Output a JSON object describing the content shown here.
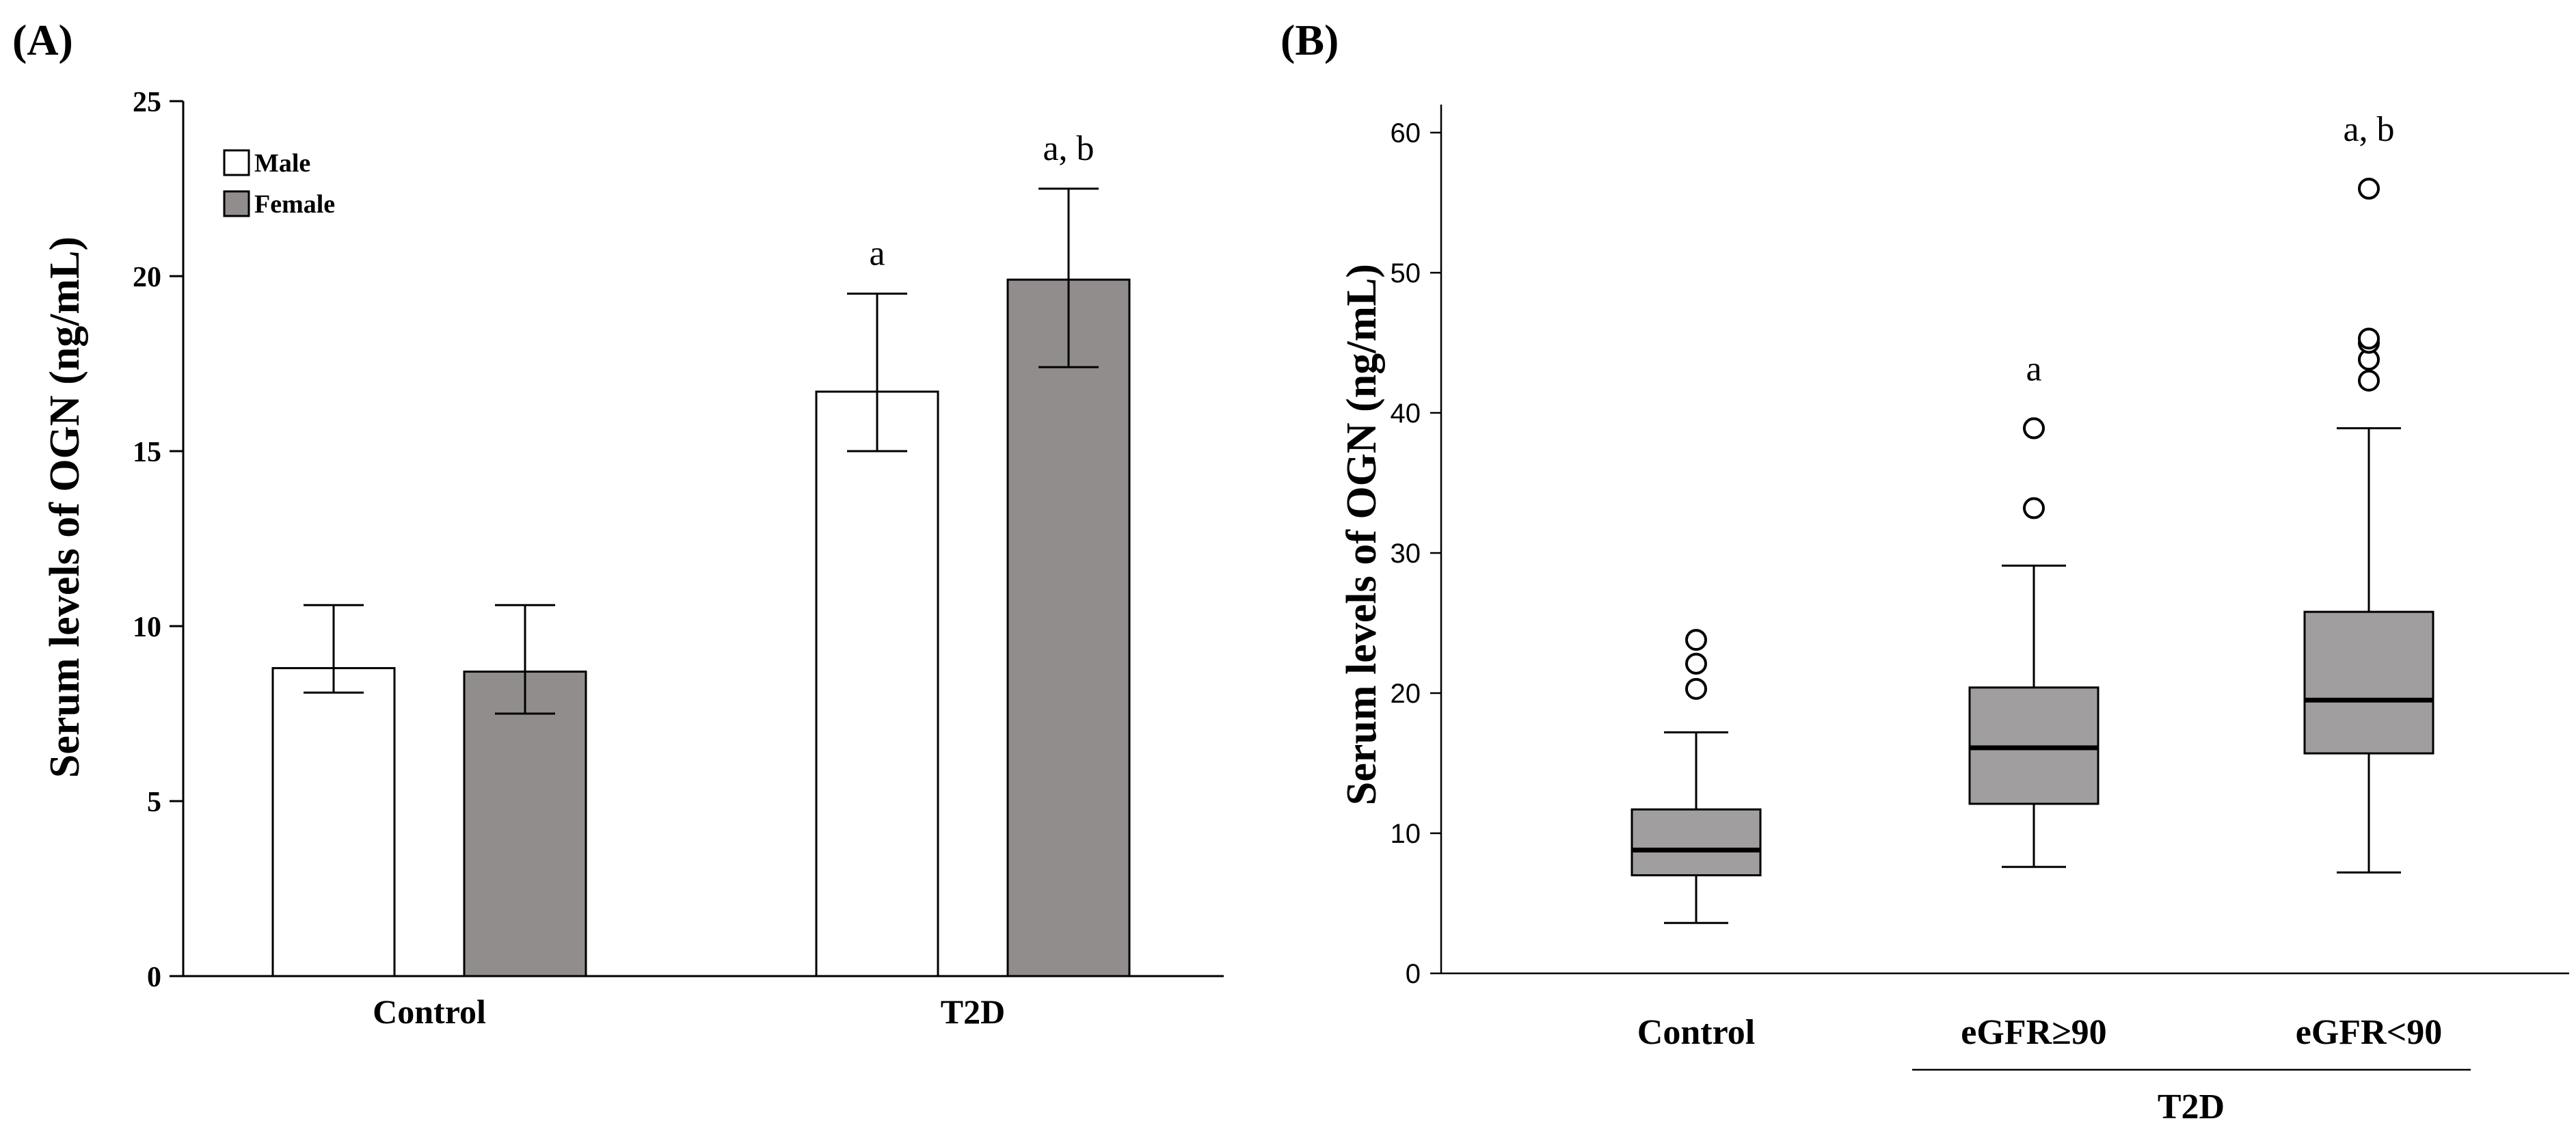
{
  "chart_data": [
    {
      "panel_label": "(A)",
      "type": "bar",
      "ylabel": "Serum levels of OGN (ng/mL)",
      "xlabel": "",
      "ylim": [
        0,
        25
      ],
      "yticks": [
        "0",
        "5",
        "10",
        "15",
        "20",
        "25"
      ],
      "categories": [
        "Control",
        "T2D"
      ],
      "legend": {
        "position": "top-left",
        "entries": [
          "Male",
          "Female"
        ]
      },
      "series": [
        {
          "name": "Male",
          "color": "#ffffff",
          "values": [
            8.8,
            16.7
          ],
          "err_low": [
            8.1,
            15.0
          ],
          "err_high": [
            10.6,
            19.5
          ]
        },
        {
          "name": "Female",
          "color": "#918d8c",
          "values": [
            8.7,
            19.9
          ],
          "err_low": [
            7.5,
            17.4
          ],
          "err_high": [
            10.6,
            22.5
          ]
        }
      ],
      "annotations": [
        {
          "category": "T2D",
          "series": "Male",
          "text": "a"
        },
        {
          "category": "T2D",
          "series": "Female",
          "text": "a, b"
        }
      ]
    },
    {
      "panel_label": "(B)",
      "type": "box",
      "ylabel": "Serum levels of OGN (ng/mL)",
      "ylim": [
        0,
        62
      ],
      "yticks": [
        "0",
        "10",
        "20",
        "30",
        "40",
        "50",
        "60"
      ],
      "categories": [
        "Control",
        "eGFR≥90",
        "eGFR<90"
      ],
      "group_label": {
        "text": "T2D",
        "spans": [
          "eGFR≥90",
          "eGFR<90"
        ]
      },
      "box_color": "#a09e9e",
      "boxes": [
        {
          "category": "Control",
          "whisker_low": 3.6,
          "q1": 7.0,
          "median": 8.8,
          "q3": 11.7,
          "whisker_high": 17.2,
          "outliers": [
            20.3,
            22.1,
            23.8
          ]
        },
        {
          "category": "eGFR≥90",
          "whisker_low": 7.6,
          "q1": 12.1,
          "median": 16.1,
          "q3": 20.4,
          "whisker_high": 29.1,
          "outliers": [
            33.2,
            38.9
          ]
        },
        {
          "category": "eGFR<90",
          "whisker_low": 7.2,
          "q1": 15.7,
          "median": 19.5,
          "q3": 25.8,
          "whisker_high": 38.9,
          "outliers": [
            42.3,
            43.8,
            45.0,
            45.3,
            56.0
          ]
        }
      ],
      "annotations": [
        {
          "category": "eGFR≥90",
          "text": "a"
        },
        {
          "category": "eGFR<90",
          "text": "a, b"
        }
      ]
    }
  ]
}
